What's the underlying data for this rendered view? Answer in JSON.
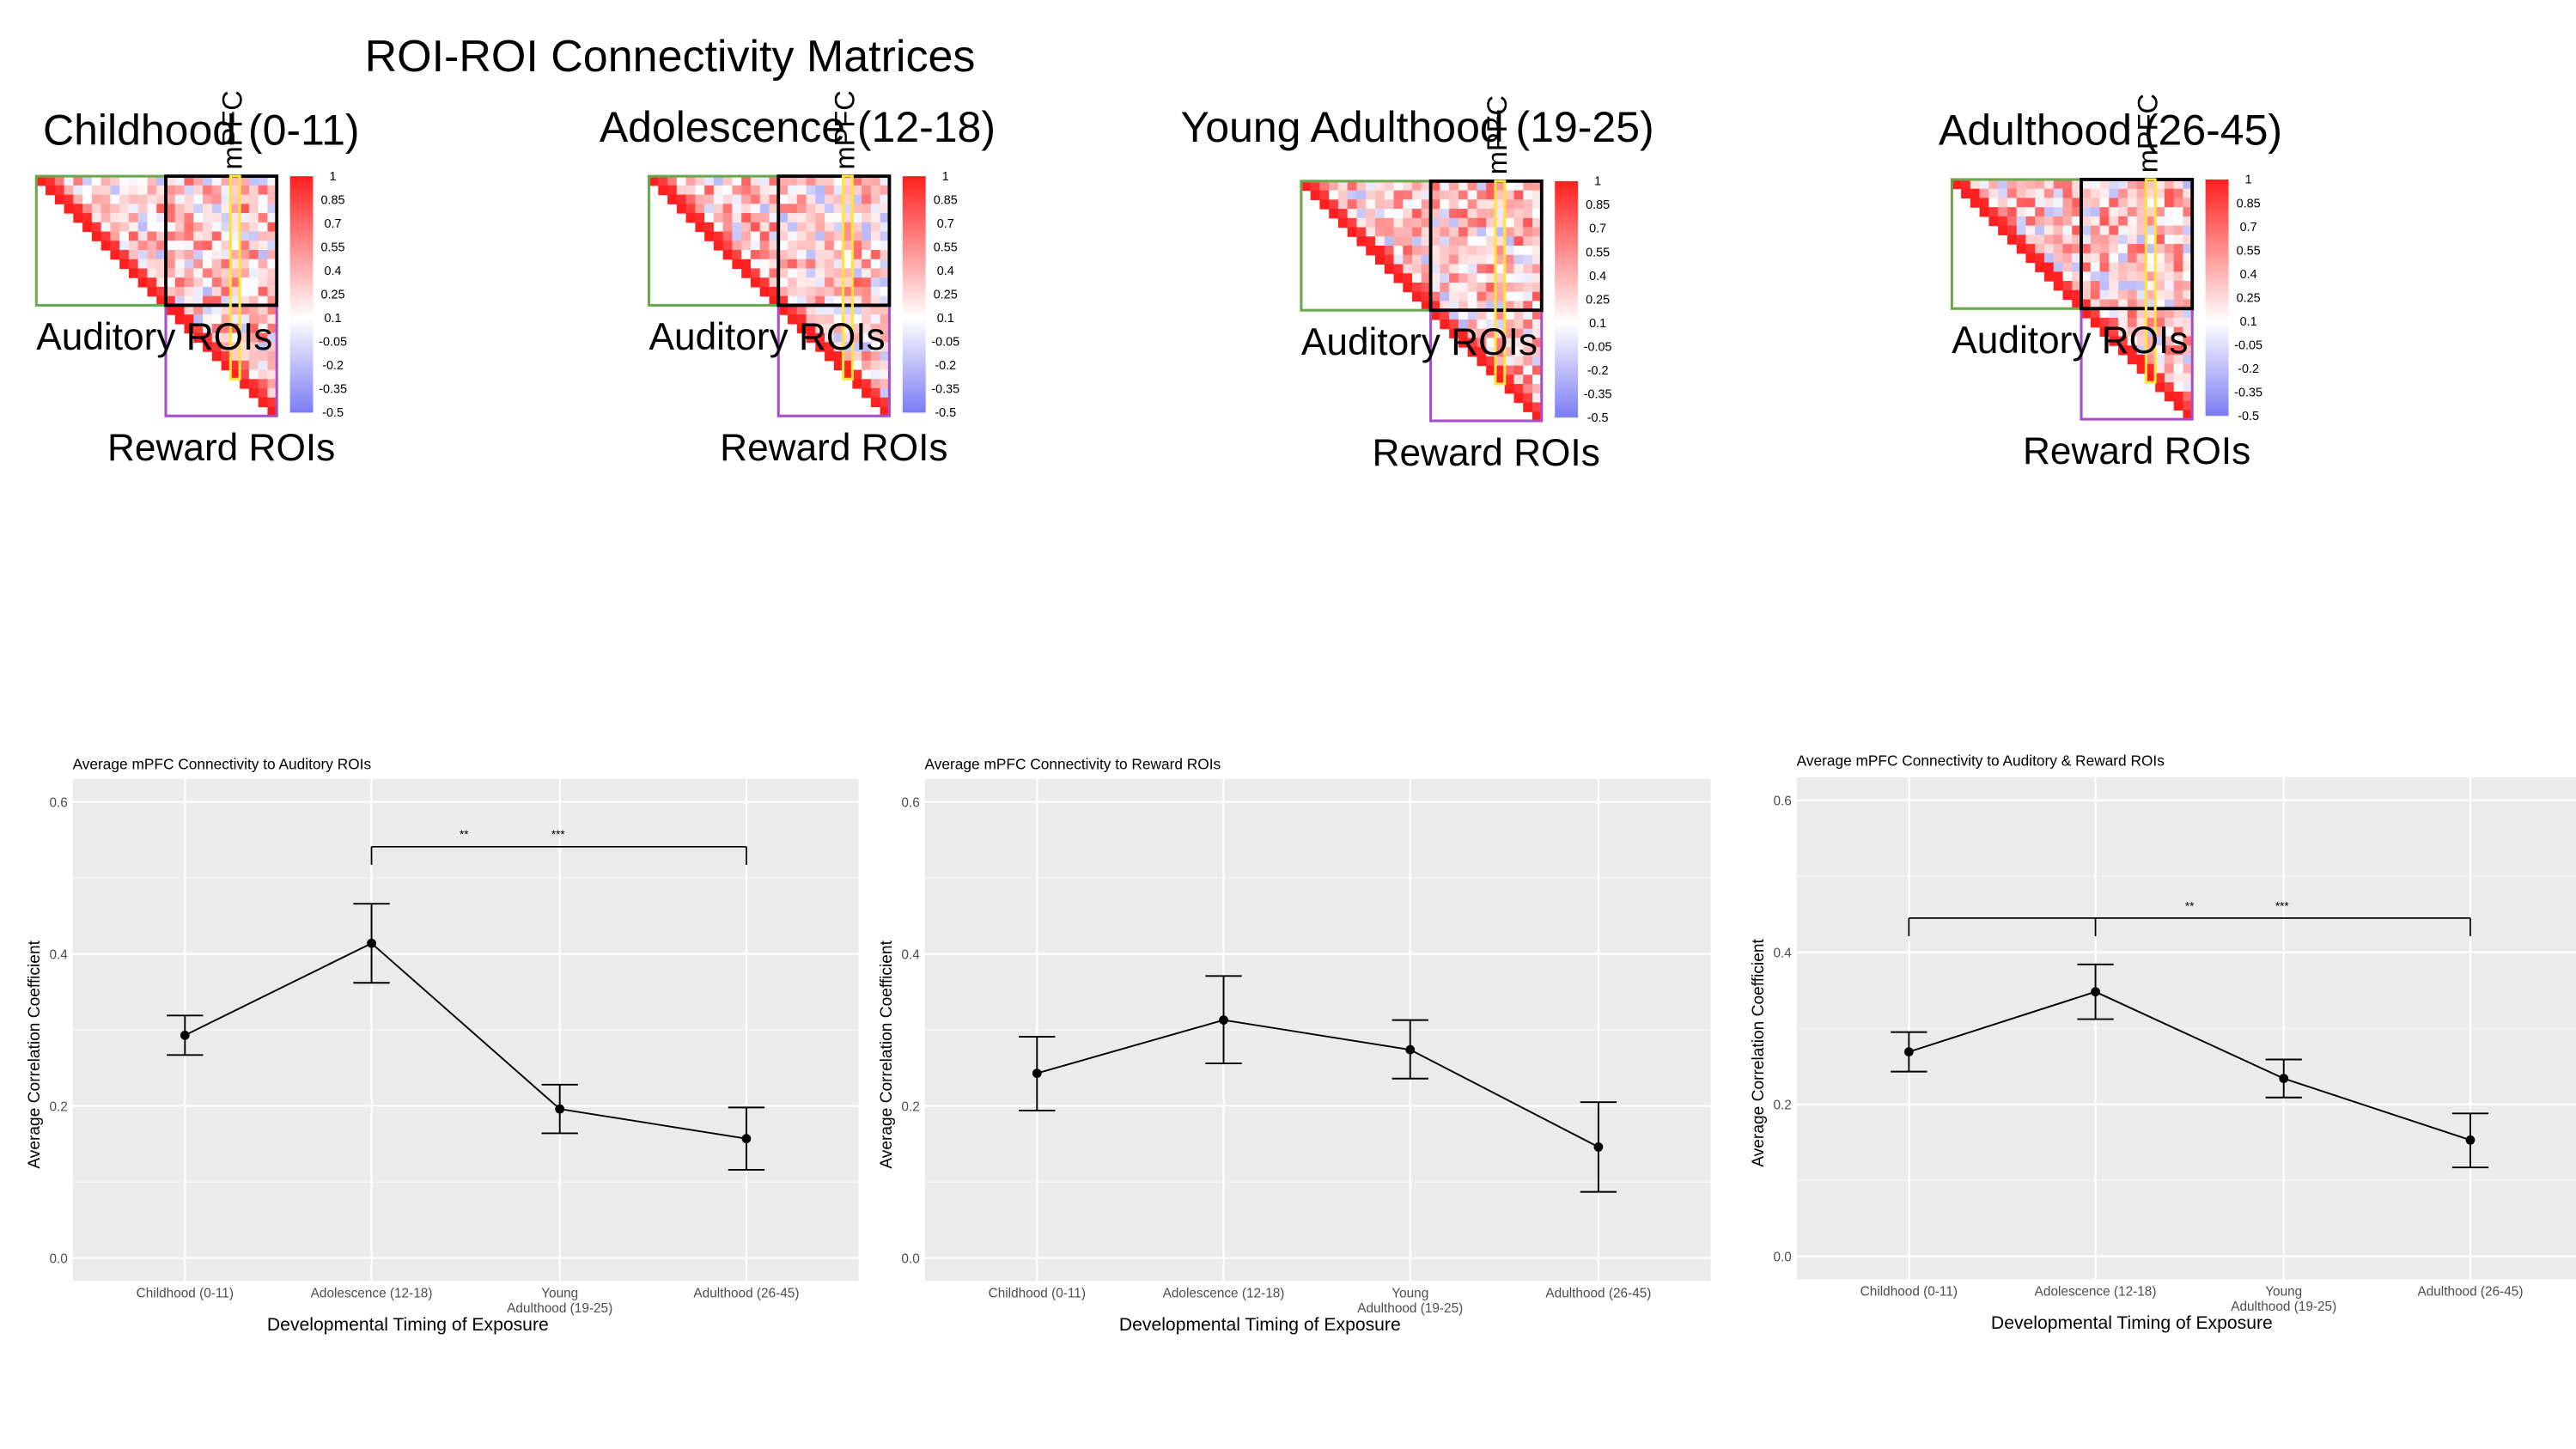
{
  "main_title": "ROI-ROI Connectivity Matrices",
  "matrix_labels": {
    "auditory": "Auditory ROIs",
    "reward": "Reward ROIs",
    "mpfc": "mPFC"
  },
  "colorbar_ticks": [
    "1",
    "0.85",
    "0.7",
    "0.55",
    "0.4",
    "0.25",
    "0.1",
    "-0.05",
    "-0.2",
    "-0.35",
    "-0.5"
  ],
  "colors": {
    "auditory_box": "#6aa84f",
    "cross_box": "#000000",
    "reward_box": "#a64fc8",
    "mpfc_highlight": "#ffe53a",
    "positive": "#ff1f1f",
    "negative": "#7c7cf5",
    "plot_panel": "#ebebeb"
  },
  "chart_data": [
    {
      "type": "heatmap",
      "title": "Childhood (0-11)",
      "value_range": [
        -0.5,
        1
      ],
      "colorbar_ticks": [
        1,
        0.85,
        0.7,
        0.55,
        0.4,
        0.25,
        0.1,
        -0.05,
        -0.2,
        -0.35,
        -0.5
      ],
      "blocks": [
        "Auditory ROIs",
        "Reward ROIs"
      ],
      "highlight": "mPFC",
      "note": "cell values not individually legible; mostly positive (light to dark red) with a few negative (blue) cells"
    },
    {
      "type": "heatmap",
      "title": "Adolescence (12-18)",
      "value_range": [
        -0.5,
        1
      ],
      "colorbar_ticks": [
        1,
        0.85,
        0.7,
        0.55,
        0.4,
        0.25,
        0.1,
        -0.05,
        -0.2,
        -0.35,
        -0.5
      ],
      "blocks": [
        "Auditory ROIs",
        "Reward ROIs"
      ],
      "highlight": "mPFC",
      "note": "cell values not individually legible"
    },
    {
      "type": "heatmap",
      "title": "Young Adulthood (19-25)",
      "value_range": [
        -0.5,
        1
      ],
      "colorbar_ticks": [
        1,
        0.85,
        0.7,
        0.55,
        0.4,
        0.25,
        0.1,
        -0.05,
        -0.2,
        -0.35,
        -0.5
      ],
      "blocks": [
        "Auditory ROIs",
        "Reward ROIs"
      ],
      "highlight": "mPFC",
      "note": "cell values not individually legible"
    },
    {
      "type": "heatmap",
      "title": "Adulthood (26-45)",
      "value_range": [
        -0.5,
        1
      ],
      "colorbar_ticks": [
        1,
        0.85,
        0.7,
        0.55,
        0.4,
        0.25,
        0.1,
        -0.05,
        -0.2,
        -0.35,
        -0.5
      ],
      "blocks": [
        "Auditory ROIs",
        "Reward ROIs"
      ],
      "highlight": "mPFC",
      "note": "cell values not individually legible"
    },
    {
      "type": "line",
      "title": "Average mPFC Connectivity to Auditory ROIs",
      "xlabel": "Developmental Timing of Exposure",
      "ylabel": "Average Correlation Coefficient",
      "categories": [
        "Childhood (0-11)",
        "Adolescence (12-18)",
        "Young Adulthood (19-25)",
        "Adulthood (26-45)"
      ],
      "values": [
        0.293,
        0.414,
        0.196,
        0.157
      ],
      "error_low": [
        0.267,
        0.362,
        0.164,
        0.116
      ],
      "error_high": [
        0.319,
        0.466,
        0.228,
        0.198
      ],
      "ylim": [
        0,
        0.6
      ],
      "yticks": [
        0.0,
        0.2,
        0.4,
        0.6
      ],
      "significance": {
        "from": 1,
        "to": 3,
        "labels": [
          "**",
          "***"
        ]
      },
      "grid": true
    },
    {
      "type": "line",
      "title": "Average mPFC Connectivity to Reward ROIs",
      "xlabel": "Developmental Timing of Exposure",
      "ylabel": "Average Correlation Coefficient",
      "categories": [
        "Childhood (0-11)",
        "Adolescence (12-18)",
        "Young Adulthood (19-25)",
        "Adulthood (26-45)"
      ],
      "values": [
        0.243,
        0.313,
        0.274,
        0.146
      ],
      "error_low": [
        0.194,
        0.256,
        0.236,
        0.087
      ],
      "error_high": [
        0.291,
        0.371,
        0.313,
        0.205
      ],
      "ylim": [
        0,
        0.6
      ],
      "yticks": [
        0.0,
        0.2,
        0.4,
        0.6
      ],
      "grid": true
    },
    {
      "type": "line",
      "title": "Average mPFC Connectivity to Auditory & Reward ROIs",
      "xlabel": "Developmental Timing of Exposure",
      "ylabel": "Average Correlation Coefficient",
      "categories": [
        "Childhood (0-11)",
        "Adolescence (12-18)",
        "Young Adulthood (19-25)",
        "Adulthood (26-45)"
      ],
      "values": [
        0.269,
        0.348,
        0.234,
        0.153
      ],
      "error_low": [
        0.243,
        0.312,
        0.209,
        0.117
      ],
      "error_high": [
        0.295,
        0.384,
        0.259,
        0.188
      ],
      "ylim": [
        0,
        0.6
      ],
      "yticks": [
        0.0,
        0.2,
        0.4,
        0.6
      ],
      "significance": {
        "from": 0,
        "to": 3,
        "labels": [
          "**",
          "***"
        ]
      },
      "grid": true
    }
  ]
}
